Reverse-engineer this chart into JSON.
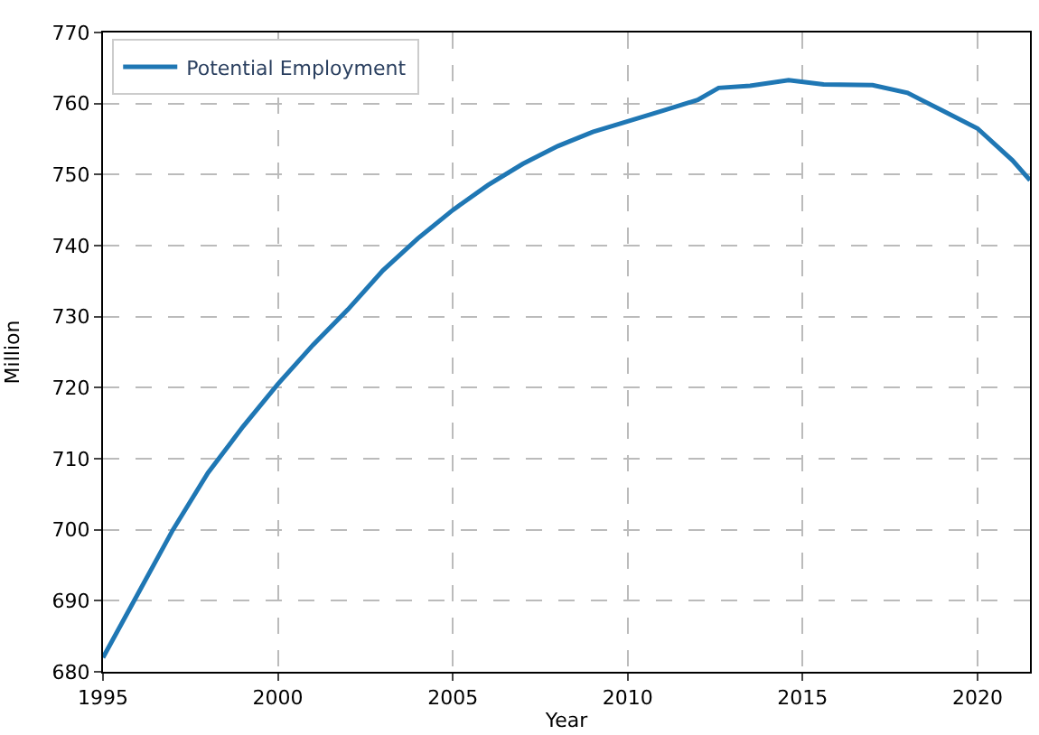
{
  "chart_data": {
    "type": "line",
    "xlabel": "Year",
    "ylabel": "Million",
    "x": [
      1995,
      1996,
      1997,
      1998,
      1999,
      2000,
      2001,
      2002,
      2003,
      2004,
      2005,
      2006,
      2007,
      2008,
      2009,
      2010,
      2011,
      2012,
      2012.6,
      2013.5,
      2014.6,
      2015.6,
      2017,
      2018,
      2019,
      2020,
      2021,
      2021.5
    ],
    "series": [
      {
        "name": "Potential Employment",
        "color": "#1f77b4",
        "values": [
          682,
          691,
          700,
          708,
          714.5,
          720.5,
          726,
          731,
          736.5,
          741,
          745,
          748.5,
          751.5,
          754,
          756,
          757.5,
          759,
          760.5,
          762.2,
          762.5,
          763.3,
          762.7,
          762.6,
          761.5,
          759,
          756.5,
          752,
          749.2
        ]
      }
    ],
    "xlim": [
      1995,
      2021.5
    ],
    "xticks": [
      1995,
      2000,
      2005,
      2010,
      2015,
      2020
    ],
    "ylim": [
      680,
      770
    ],
    "yticks": [
      680,
      690,
      700,
      710,
      720,
      730,
      740,
      750,
      760,
      770
    ],
    "grid": true,
    "legend": "top left",
    "line_style": "solid",
    "marker": "none"
  }
}
